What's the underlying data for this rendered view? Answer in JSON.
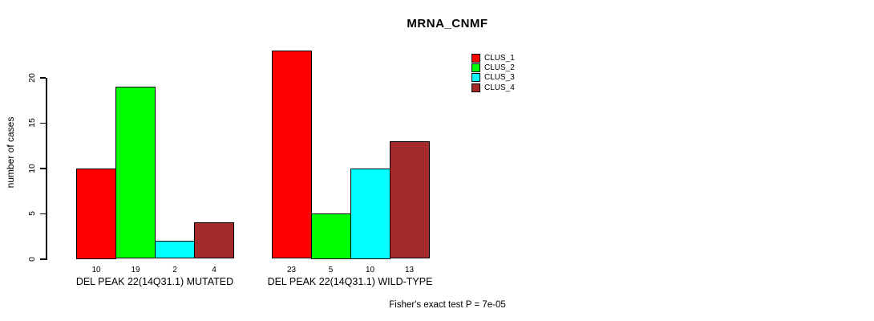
{
  "chart_data": {
    "type": "bar",
    "title": "MRNA_CNMF",
    "xlabel": "",
    "ylabel": "number of cases",
    "ylim": [
      0,
      23
    ],
    "yticks": [
      0,
      5,
      10,
      15,
      20
    ],
    "grid": false,
    "legend_position": "top-right",
    "categories": [
      "DEL PEAK 22(14Q31.1) MUTATED",
      "DEL PEAK 22(14Q31.1) WILD-TYPE"
    ],
    "series": [
      {
        "name": "CLUS_1",
        "color": "#ff0000",
        "values": [
          10,
          23
        ]
      },
      {
        "name": "CLUS_2",
        "color": "#00ff00",
        "values": [
          19,
          5
        ]
      },
      {
        "name": "CLUS_3",
        "color": "#00ffff",
        "values": [
          2,
          10
        ]
      },
      {
        "name": "CLUS_4",
        "color": "#a52a2a",
        "values": [
          4,
          13
        ]
      }
    ],
    "bar_value_labels": {
      "group1": [
        10,
        19,
        2,
        4
      ],
      "group2": [
        23,
        5,
        10,
        13
      ]
    },
    "annotation": "Fisher's exact test P = 7e-05"
  },
  "colors": {
    "background": "#ffffff",
    "axis": "#000000",
    "text": "#000000"
  }
}
